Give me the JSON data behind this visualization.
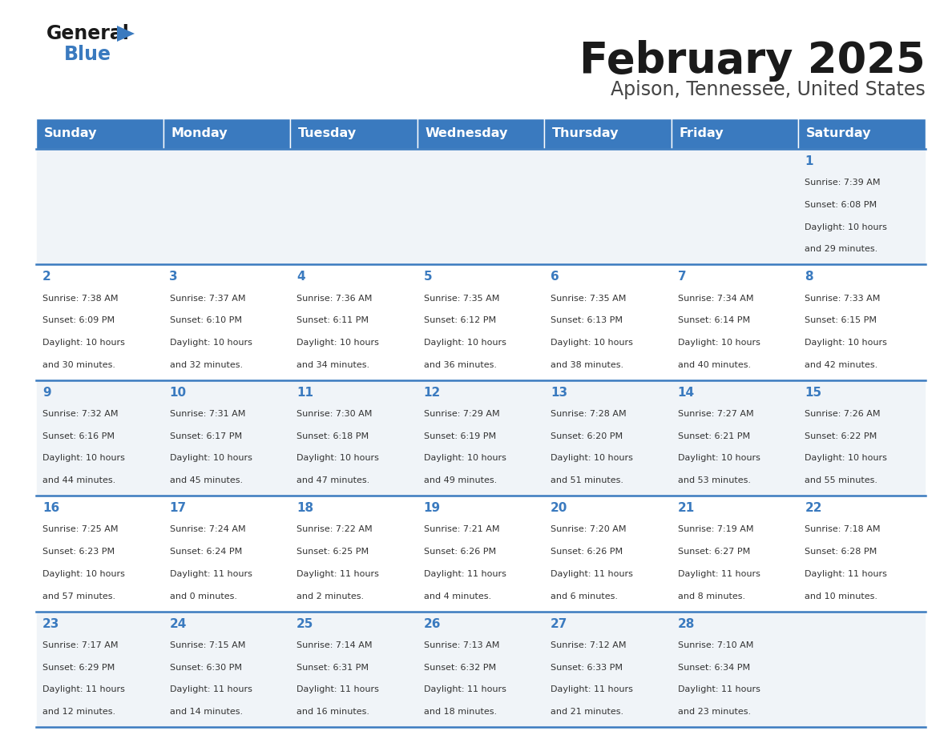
{
  "title": "February 2025",
  "subtitle": "Apison, Tennessee, United States",
  "header_bg_color": "#3A7ABF",
  "header_text_color": "#FFFFFF",
  "cell_bg_color_light": "#F0F4F8",
  "cell_bg_color_white": "#FFFFFF",
  "border_color": "#3A7ABF",
  "day_number_color": "#3A7ABF",
  "cell_text_color": "#333333",
  "days_of_week": [
    "Sunday",
    "Monday",
    "Tuesday",
    "Wednesday",
    "Thursday",
    "Friday",
    "Saturday"
  ],
  "calendar_data": [
    [
      {
        "day": null,
        "sunrise": null,
        "sunset": null,
        "daylight": null
      },
      {
        "day": null,
        "sunrise": null,
        "sunset": null,
        "daylight": null
      },
      {
        "day": null,
        "sunrise": null,
        "sunset": null,
        "daylight": null
      },
      {
        "day": null,
        "sunrise": null,
        "sunset": null,
        "daylight": null
      },
      {
        "day": null,
        "sunrise": null,
        "sunset": null,
        "daylight": null
      },
      {
        "day": null,
        "sunrise": null,
        "sunset": null,
        "daylight": null
      },
      {
        "day": 1,
        "sunrise": "7:39 AM",
        "sunset": "6:08 PM",
        "daylight": "10 hours\nand 29 minutes."
      }
    ],
    [
      {
        "day": 2,
        "sunrise": "7:38 AM",
        "sunset": "6:09 PM",
        "daylight": "10 hours\nand 30 minutes."
      },
      {
        "day": 3,
        "sunrise": "7:37 AM",
        "sunset": "6:10 PM",
        "daylight": "10 hours\nand 32 minutes."
      },
      {
        "day": 4,
        "sunrise": "7:36 AM",
        "sunset": "6:11 PM",
        "daylight": "10 hours\nand 34 minutes."
      },
      {
        "day": 5,
        "sunrise": "7:35 AM",
        "sunset": "6:12 PM",
        "daylight": "10 hours\nand 36 minutes."
      },
      {
        "day": 6,
        "sunrise": "7:35 AM",
        "sunset": "6:13 PM",
        "daylight": "10 hours\nand 38 minutes."
      },
      {
        "day": 7,
        "sunrise": "7:34 AM",
        "sunset": "6:14 PM",
        "daylight": "10 hours\nand 40 minutes."
      },
      {
        "day": 8,
        "sunrise": "7:33 AM",
        "sunset": "6:15 PM",
        "daylight": "10 hours\nand 42 minutes."
      }
    ],
    [
      {
        "day": 9,
        "sunrise": "7:32 AM",
        "sunset": "6:16 PM",
        "daylight": "10 hours\nand 44 minutes."
      },
      {
        "day": 10,
        "sunrise": "7:31 AM",
        "sunset": "6:17 PM",
        "daylight": "10 hours\nand 45 minutes."
      },
      {
        "day": 11,
        "sunrise": "7:30 AM",
        "sunset": "6:18 PM",
        "daylight": "10 hours\nand 47 minutes."
      },
      {
        "day": 12,
        "sunrise": "7:29 AM",
        "sunset": "6:19 PM",
        "daylight": "10 hours\nand 49 minutes."
      },
      {
        "day": 13,
        "sunrise": "7:28 AM",
        "sunset": "6:20 PM",
        "daylight": "10 hours\nand 51 minutes."
      },
      {
        "day": 14,
        "sunrise": "7:27 AM",
        "sunset": "6:21 PM",
        "daylight": "10 hours\nand 53 minutes."
      },
      {
        "day": 15,
        "sunrise": "7:26 AM",
        "sunset": "6:22 PM",
        "daylight": "10 hours\nand 55 minutes."
      }
    ],
    [
      {
        "day": 16,
        "sunrise": "7:25 AM",
        "sunset": "6:23 PM",
        "daylight": "10 hours\nand 57 minutes."
      },
      {
        "day": 17,
        "sunrise": "7:24 AM",
        "sunset": "6:24 PM",
        "daylight": "11 hours\nand 0 minutes."
      },
      {
        "day": 18,
        "sunrise": "7:22 AM",
        "sunset": "6:25 PM",
        "daylight": "11 hours\nand 2 minutes."
      },
      {
        "day": 19,
        "sunrise": "7:21 AM",
        "sunset": "6:26 PM",
        "daylight": "11 hours\nand 4 minutes."
      },
      {
        "day": 20,
        "sunrise": "7:20 AM",
        "sunset": "6:26 PM",
        "daylight": "11 hours\nand 6 minutes."
      },
      {
        "day": 21,
        "sunrise": "7:19 AM",
        "sunset": "6:27 PM",
        "daylight": "11 hours\nand 8 minutes."
      },
      {
        "day": 22,
        "sunrise": "7:18 AM",
        "sunset": "6:28 PM",
        "daylight": "11 hours\nand 10 minutes."
      }
    ],
    [
      {
        "day": 23,
        "sunrise": "7:17 AM",
        "sunset": "6:29 PM",
        "daylight": "11 hours\nand 12 minutes."
      },
      {
        "day": 24,
        "sunrise": "7:15 AM",
        "sunset": "6:30 PM",
        "daylight": "11 hours\nand 14 minutes."
      },
      {
        "day": 25,
        "sunrise": "7:14 AM",
        "sunset": "6:31 PM",
        "daylight": "11 hours\nand 16 minutes."
      },
      {
        "day": 26,
        "sunrise": "7:13 AM",
        "sunset": "6:32 PM",
        "daylight": "11 hours\nand 18 minutes."
      },
      {
        "day": 27,
        "sunrise": "7:12 AM",
        "sunset": "6:33 PM",
        "daylight": "11 hours\nand 21 minutes."
      },
      {
        "day": 28,
        "sunrise": "7:10 AM",
        "sunset": "6:34 PM",
        "daylight": "11 hours\nand 23 minutes."
      },
      {
        "day": null,
        "sunrise": null,
        "sunset": null,
        "daylight": null
      }
    ]
  ]
}
